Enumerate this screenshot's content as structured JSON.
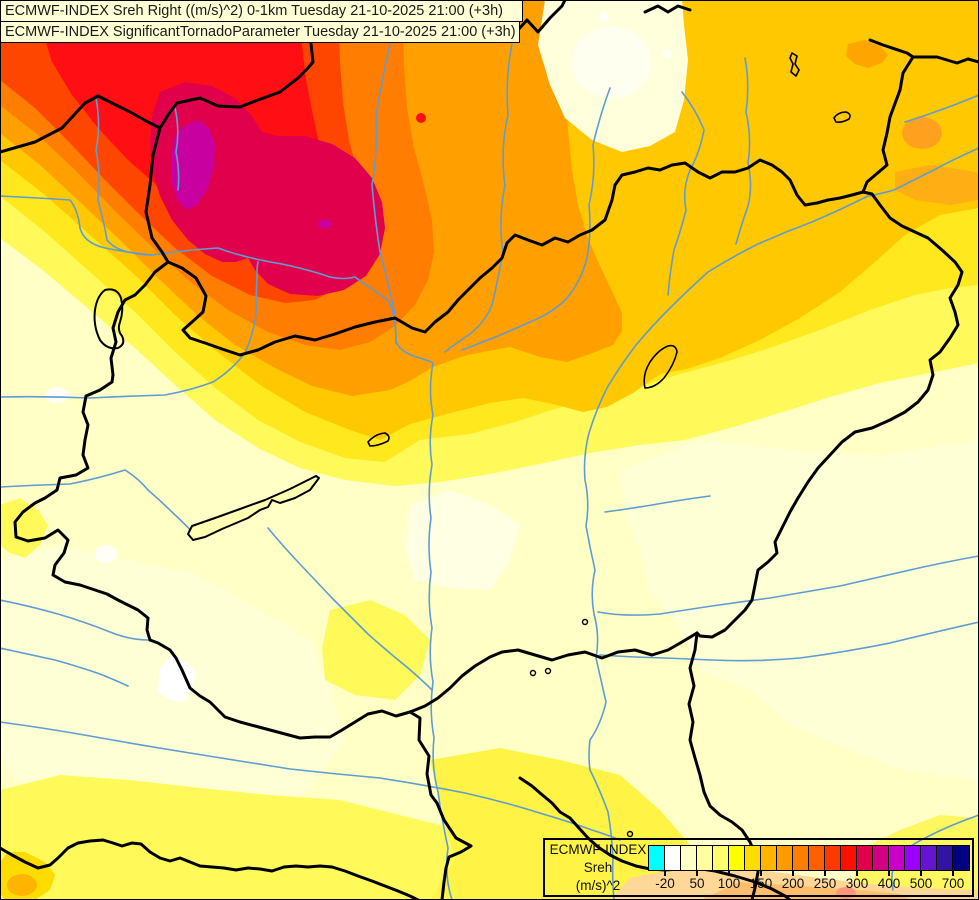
{
  "titles": {
    "line1": "ECMWF-INDEX Sreh Right ((m/s)^2) 0-1km Tuesday 21-10-2025 21:00 (+3h)",
    "line2": "ECMWF-INDEX SignificantTornadoParameter Tuesday 21-10-2025 21:00 (+3h)"
  },
  "legend": {
    "product": "ECMWF-INDEX",
    "parameter": "Sreh",
    "units": "(m/s)^2",
    "colorbar": {
      "colors": [
        "#00FFFF",
        "#FFFFFF",
        "#FFFFC8",
        "#FFFFA0",
        "#FFFF6E",
        "#FFFF00",
        "#FFDC00",
        "#FFB400",
        "#FF9B00",
        "#FF7D00",
        "#FF5F00",
        "#FF3700",
        "#FF0F00",
        "#E1004B",
        "#D20082",
        "#C800C8",
        "#9B00FF",
        "#6414D2",
        "#3214A0",
        "#000080"
      ],
      "tick_labels": [
        "-20",
        "50",
        "100",
        "150",
        "200",
        "250",
        "300",
        "400",
        "500",
        "700"
      ]
    }
  },
  "map": {
    "colors": {
      "background": "#FFFFC6",
      "country_border": "#000000",
      "river": "#5E9CD3",
      "hotspot_core": "#C800A0"
    }
  }
}
